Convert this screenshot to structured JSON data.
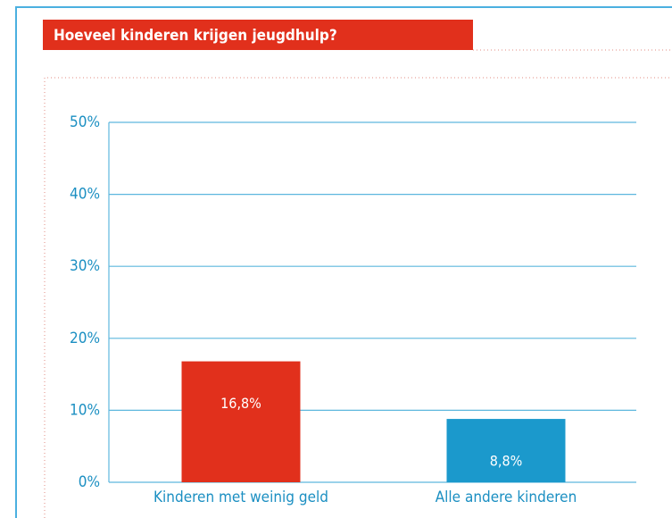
{
  "chart_data": {
    "type": "bar",
    "title": "Hoeveel kinderen krijgen jeugdhulp?",
    "categories": [
      "Kinderen met weinig geld",
      "Alle andere kinderen"
    ],
    "values": [
      16.8,
      8.8
    ],
    "value_labels": [
      "16,8%",
      "8,8%"
    ],
    "colors": [
      "#e1301c",
      "#1b99cc"
    ],
    "ylim": [
      0,
      50
    ],
    "yticks": [
      {
        "value": 0,
        "label": "0%"
      },
      {
        "value": 10,
        "label": "10%"
      },
      {
        "value": 20,
        "label": "20%"
      },
      {
        "value": 30,
        "label": "30%"
      },
      {
        "value": 40,
        "label": "40%"
      },
      {
        "value": 50,
        "label": "50%"
      }
    ],
    "grid": true
  }
}
